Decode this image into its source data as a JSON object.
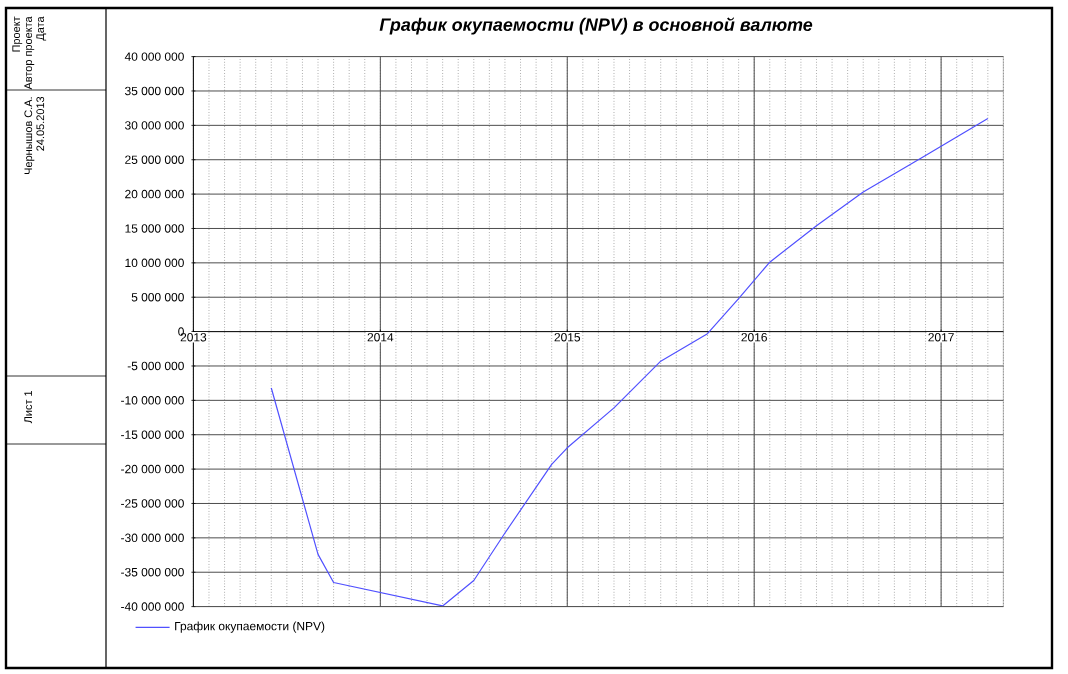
{
  "chart_data": {
    "type": "line",
    "title": "График окупаемости (NPV) в основной валюте",
    "x": [
      "2013-06",
      "2013-09",
      "2013-10",
      "2014-05",
      "2014-07",
      "2014-09",
      "2014-12",
      "2015-01",
      "2015-04",
      "2015-07",
      "2015-10",
      "2015-12",
      "2016-02",
      "2016-05",
      "2016-08",
      "2016-12",
      "2017-04"
    ],
    "series": [
      {
        "name": "График окупаемости (NPV)",
        "color": "#5050ff",
        "values": [
          -8200000,
          -32400000,
          -36500000,
          -39900000,
          -36200000,
          -29300000,
          -19300000,
          -16900000,
          -11100000,
          -4300000,
          -300000,
          4800000,
          10100000,
          15400000,
          20300000,
          25600000,
          31000000
        ]
      }
    ],
    "xlim": [
      "2013-01",
      "2017-05"
    ],
    "xticks": [
      {
        "value": "2013-01",
        "label": "2013"
      },
      {
        "value": "2014-01",
        "label": "2014"
      },
      {
        "value": "2015-01",
        "label": "2015"
      },
      {
        "value": "2016-01",
        "label": "2016"
      },
      {
        "value": "2017-01",
        "label": "2017"
      }
    ],
    "ylim": [
      -40000000,
      40000000
    ],
    "yticks": [
      {
        "value": -40000000,
        "label": "-40 000 000"
      },
      {
        "value": -35000000,
        "label": "-35 000 000"
      },
      {
        "value": -30000000,
        "label": "-30 000 000"
      },
      {
        "value": -25000000,
        "label": "-25 000 000"
      },
      {
        "value": -20000000,
        "label": "-20 000 000"
      },
      {
        "value": -15000000,
        "label": "-15 000 000"
      },
      {
        "value": -10000000,
        "label": "-10 000 000"
      },
      {
        "value": -5000000,
        "label": "-5 000 000"
      },
      {
        "value": 0,
        "label": "0"
      },
      {
        "value": 5000000,
        "label": "5 000 000"
      },
      {
        "value": 10000000,
        "label": "10 000 000"
      },
      {
        "value": 15000000,
        "label": "15 000 000"
      },
      {
        "value": 20000000,
        "label": "20 000 000"
      },
      {
        "value": 25000000,
        "label": "25 000 000"
      },
      {
        "value": 30000000,
        "label": "30 000 000"
      },
      {
        "value": 35000000,
        "label": "35 000 000"
      },
      {
        "value": 40000000,
        "label": "40 000 000"
      }
    ],
    "grid": true,
    "legend": "bottom",
    "marker": "none",
    "line_style": "solid",
    "annotations": [
      "Проект",
      "Автор проекта",
      "Дата",
      "Чернышов С.А.",
      "24.05.2013",
      "Лист 1"
    ]
  }
}
